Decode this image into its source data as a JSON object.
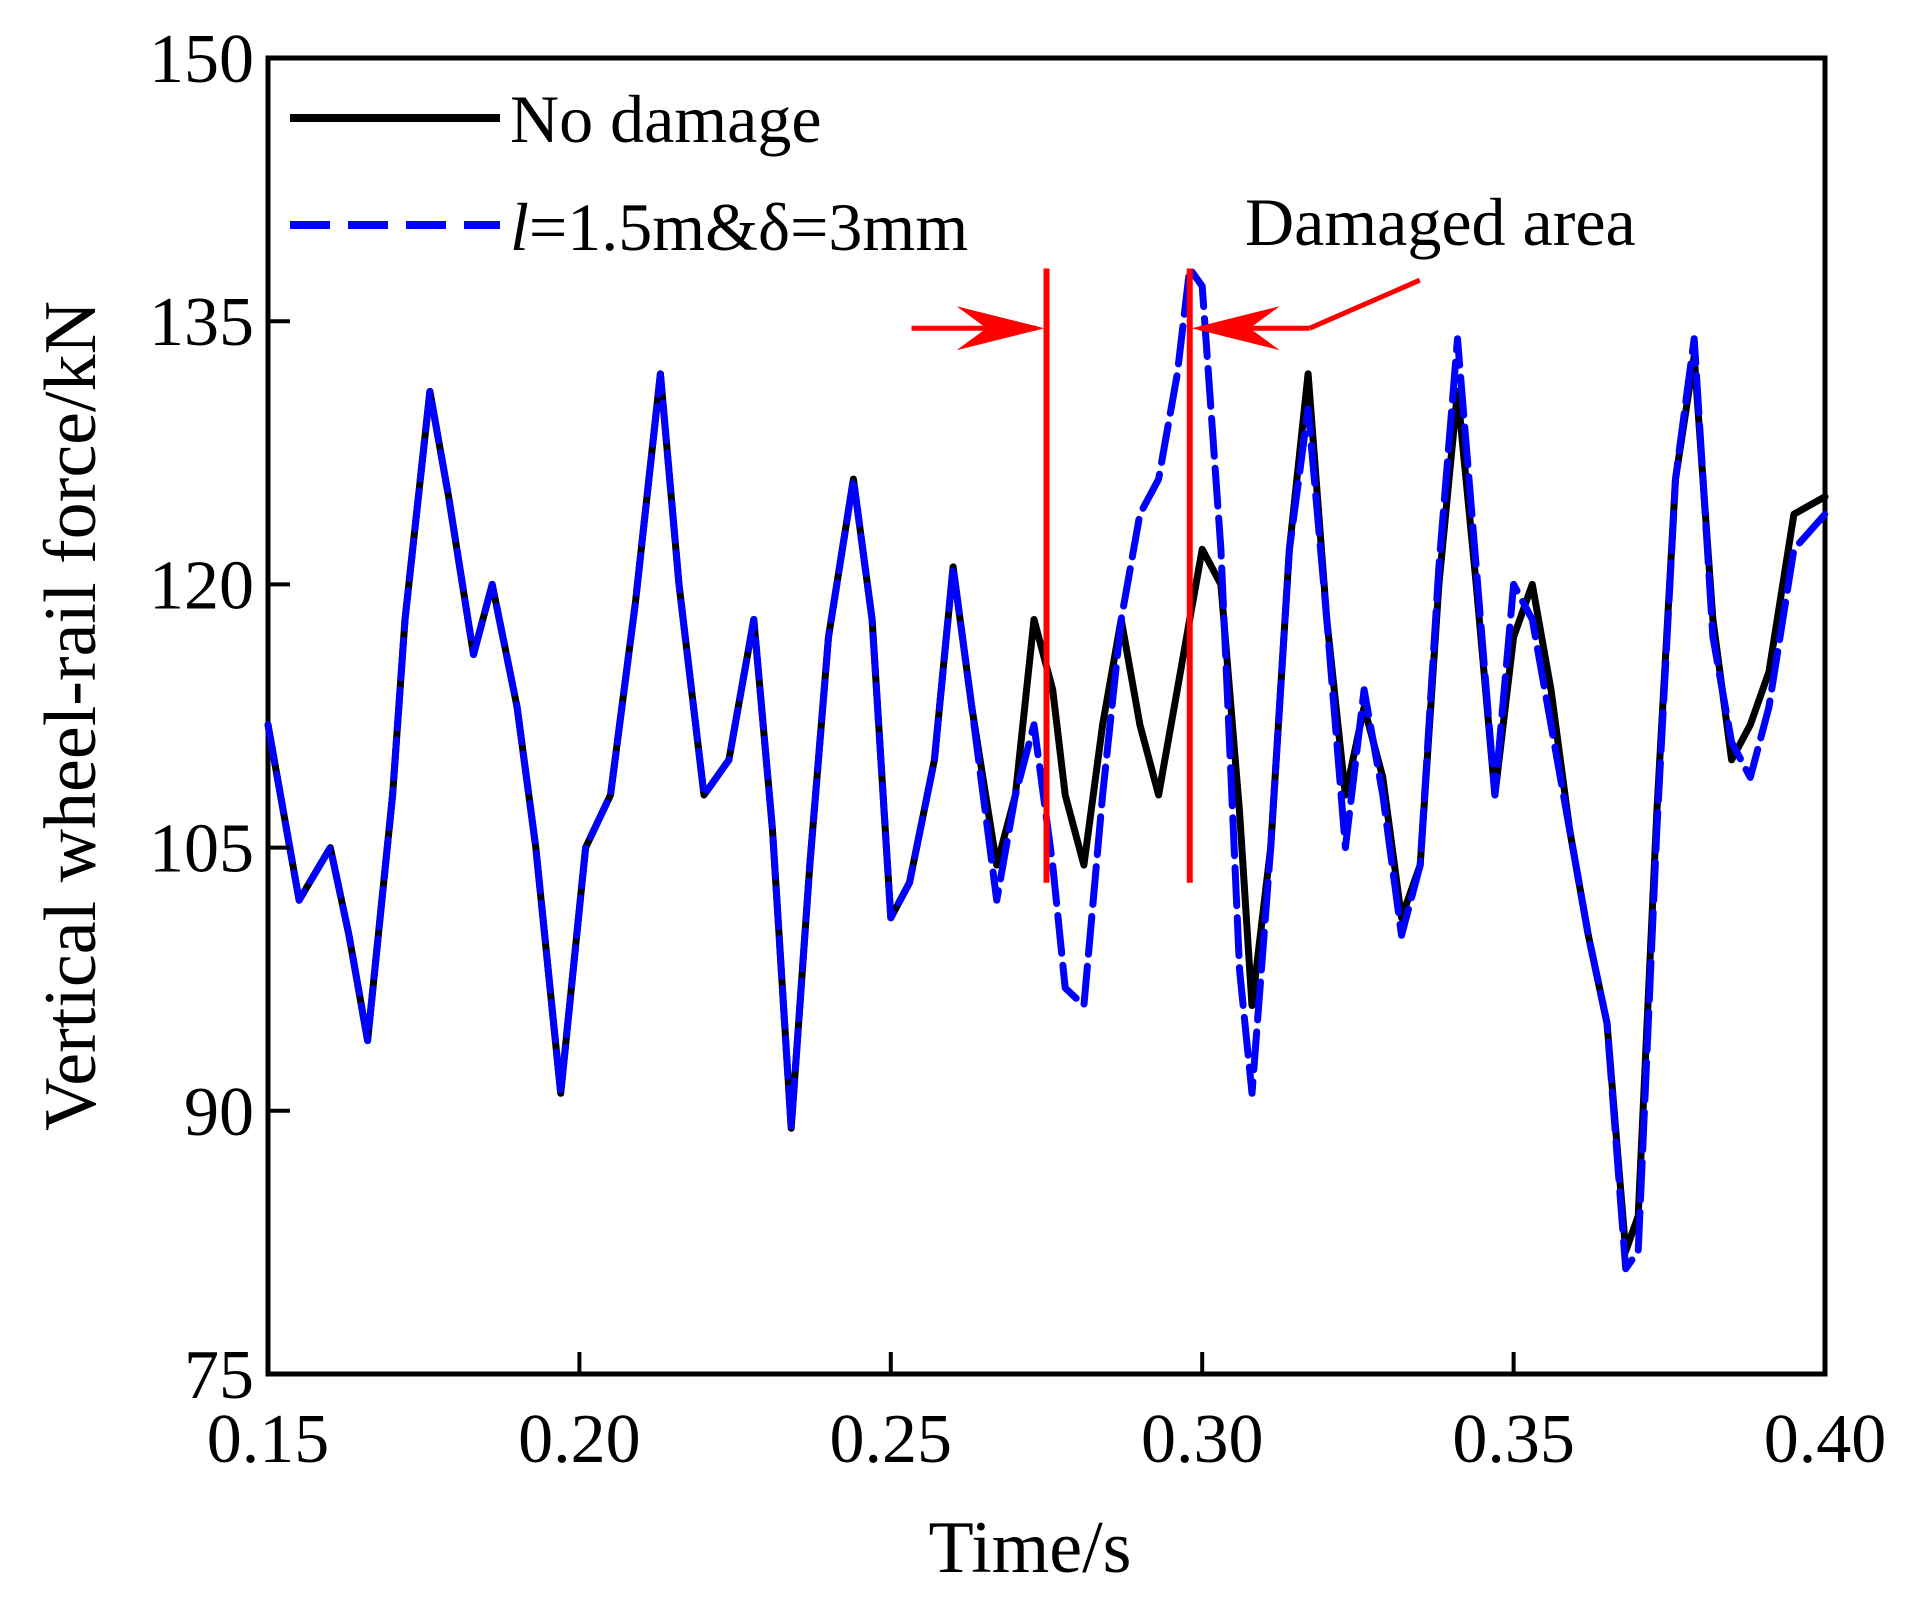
{
  "chart_data": {
    "type": "line",
    "title": "",
    "xlabel": "Time/s",
    "ylabel": "Vertical wheel-rail force/kN",
    "xlim": [
      0.15,
      0.4
    ],
    "ylim": [
      75,
      150
    ],
    "xticks": [
      0.15,
      0.2,
      0.25,
      0.3,
      0.35,
      0.4
    ],
    "xtick_labels": [
      "0.15",
      "0.20",
      "0.25",
      "0.30",
      "0.35",
      "0.40"
    ],
    "yticks": [
      75,
      90,
      105,
      120,
      135,
      150
    ],
    "ytick_labels": [
      "75",
      "90",
      "105",
      "120",
      "135",
      "150"
    ],
    "grid": false,
    "legend_position": "top-left",
    "x": [
      0.15,
      0.155,
      0.16,
      0.163,
      0.166,
      0.17,
      0.172,
      0.176,
      0.179,
      0.183,
      0.186,
      0.19,
      0.193,
      0.197,
      0.201,
      0.205,
      0.209,
      0.213,
      0.216,
      0.22,
      0.224,
      0.228,
      0.231,
      0.234,
      0.237,
      0.24,
      0.244,
      0.247,
      0.25,
      0.253,
      0.257,
      0.26,
      0.263,
      0.267,
      0.27,
      0.273,
      0.276,
      0.278,
      0.281,
      0.284,
      0.287,
      0.29,
      0.293,
      0.296,
      0.298,
      0.3,
      0.303,
      0.306,
      0.308,
      0.311,
      0.314,
      0.317,
      0.32,
      0.323,
      0.326,
      0.329,
      0.332,
      0.335,
      0.338,
      0.341,
      0.344,
      0.347,
      0.35,
      0.353,
      0.356,
      0.359,
      0.362,
      0.365,
      0.368,
      0.37,
      0.373,
      0.376,
      0.379,
      0.382,
      0.385,
      0.388,
      0.391,
      0.395,
      0.4
    ],
    "series": [
      {
        "name": "No damage",
        "color": "#000000",
        "dash": "solid",
        "values": [
          112,
          102,
          105,
          100,
          94,
          108,
          118,
          131,
          125,
          116,
          120,
          113,
          105,
          91,
          105,
          108,
          119,
          132,
          120,
          108,
          110,
          118,
          106,
          89,
          104,
          117,
          126,
          118,
          101,
          103,
          110,
          121,
          113,
          104,
          108,
          118,
          114,
          108,
          104,
          112,
          118,
          112,
          108,
          114,
          118,
          122,
          120,
          107,
          96,
          105,
          122,
          132,
          118,
          108,
          113,
          109,
          101,
          104,
          120,
          131,
          120,
          108,
          117,
          120,
          114,
          106,
          100,
          95,
          82,
          84,
          107,
          126,
          133,
          118,
          110,
          112,
          115,
          124,
          125
        ]
      },
      {
        "name": "l=1.5m&δ=3mm",
        "color": "#0000ff",
        "dash": "dashed",
        "values": [
          112,
          102,
          105,
          100,
          94,
          108,
          118,
          131,
          125,
          116,
          120,
          113,
          105,
          91,
          105,
          108,
          119,
          132,
          120,
          108,
          110,
          118,
          106,
          89,
          104,
          117,
          126,
          118,
          101,
          103,
          110,
          121,
          113,
          102,
          108,
          112,
          104,
          97,
          96,
          108,
          118,
          124,
          126,
          132,
          138,
          137,
          122,
          98,
          91,
          105,
          122,
          130,
          118,
          105,
          114,
          108,
          100,
          104,
          121,
          134,
          121,
          108,
          120,
          118,
          112,
          106,
          100,
          95,
          81,
          82,
          106,
          126,
          134,
          117,
          111,
          109,
          113,
          122,
          124
        ]
      }
    ],
    "legend": [
      {
        "label": "No damage",
        "prefix": "",
        "suffix": ""
      },
      {
        "label": "l=1.5m&δ=3mm",
        "prefix": "l",
        "suffix": "=1.5m&δ=3mm"
      }
    ],
    "annotations": {
      "damaged_area_label": "Damaged area",
      "damaged_area_start": 0.275,
      "damaged_area_end": 0.298,
      "marker_color": "#ff0000"
    }
  }
}
